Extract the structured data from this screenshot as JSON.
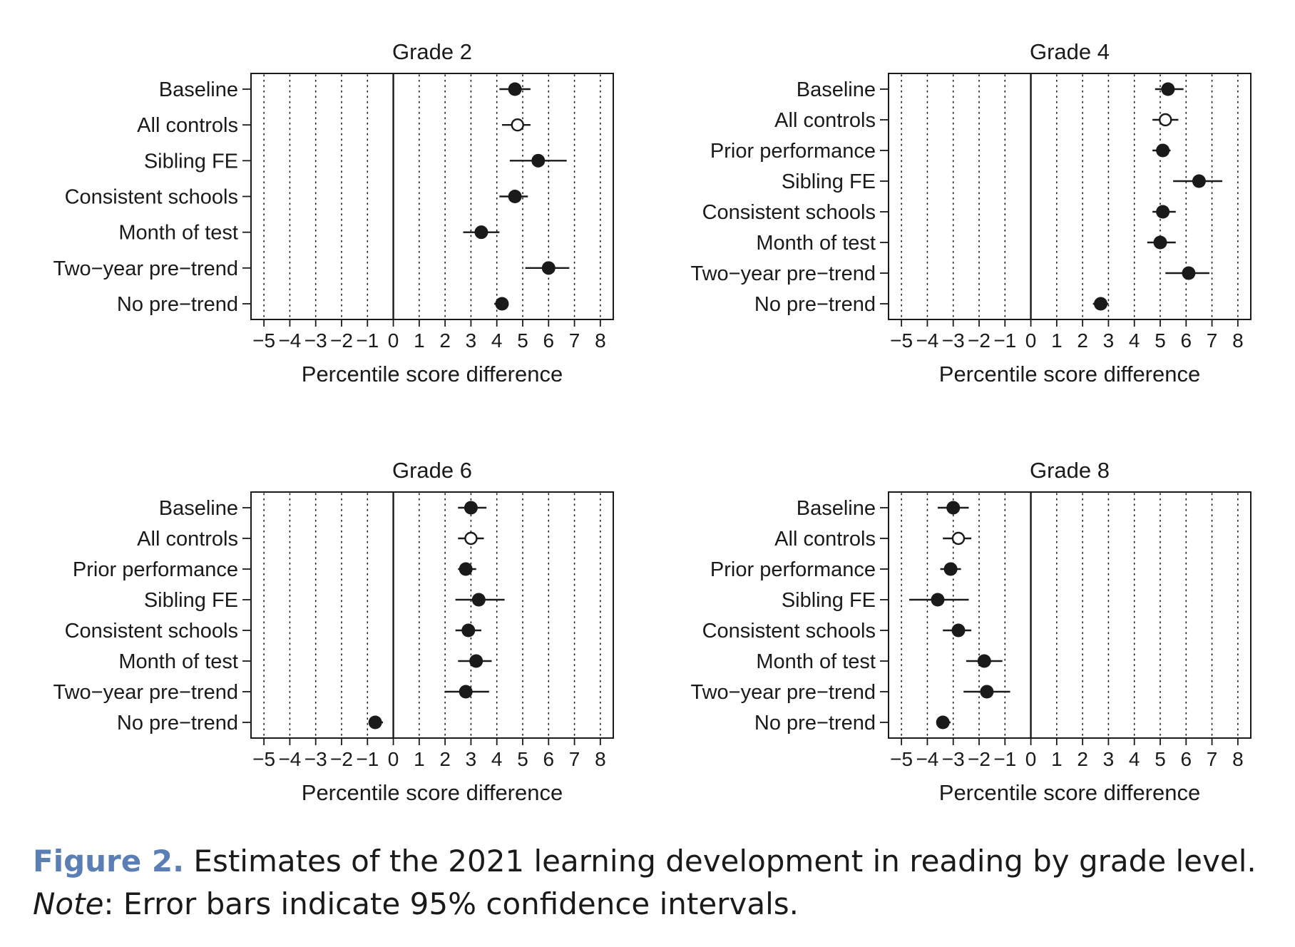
{
  "figure": {
    "label": "Figure 2.",
    "caption_main": " Estimates of the 2021 learning development in reading by grade level. ",
    "note_label": "Note",
    "note_text": ": Error bars indicate 95% confidence intervals."
  },
  "colors": {
    "ink": "#1a1a1a",
    "caption_accent": "#5b7fb5"
  },
  "chart_data": [
    {
      "type": "scatter",
      "title": "Grade 2",
      "xlabel": "Percentile score difference",
      "xlim": [
        -5.5,
        8.5
      ],
      "xticks": [
        -5,
        -4,
        -3,
        -2,
        -1,
        0,
        1,
        2,
        3,
        4,
        5,
        6,
        7,
        8
      ],
      "xtick_labels": [
        "−5",
        "−4",
        "−3",
        "−2",
        "−1",
        "0",
        "1",
        "2",
        "3",
        "4",
        "5",
        "6",
        "7",
        "8"
      ],
      "grid": "vertical dotted",
      "reference_line": 0,
      "estimates": [
        {
          "label": "Baseline",
          "value": 4.7,
          "ci": [
            4.1,
            5.3
          ],
          "marker": "filled"
        },
        {
          "label": "All controls",
          "value": 4.8,
          "ci": [
            4.2,
            5.3
          ],
          "marker": "hollow"
        },
        {
          "label": "Sibling FE",
          "value": 5.6,
          "ci": [
            4.5,
            6.7
          ],
          "marker": "filled"
        },
        {
          "label": "Consistent schools",
          "value": 4.7,
          "ci": [
            4.1,
            5.2
          ],
          "marker": "filled"
        },
        {
          "label": "Month of test",
          "value": 3.4,
          "ci": [
            2.7,
            4.1
          ],
          "marker": "filled"
        },
        {
          "label": "Two−year pre−trend",
          "value": 6.0,
          "ci": [
            5.1,
            6.8
          ],
          "marker": "filled"
        },
        {
          "label": "No pre−trend",
          "value": 4.2,
          "ci": [
            3.9,
            4.4
          ],
          "marker": "filled"
        }
      ]
    },
    {
      "type": "scatter",
      "title": "Grade 4",
      "xlabel": "Percentile score difference",
      "xlim": [
        -5.5,
        8.5
      ],
      "xticks": [
        -5,
        -4,
        -3,
        -2,
        -1,
        0,
        1,
        2,
        3,
        4,
        5,
        6,
        7,
        8
      ],
      "xtick_labels": [
        "−5",
        "−4",
        "−3",
        "−2",
        "−1",
        "0",
        "1",
        "2",
        "3",
        "4",
        "5",
        "6",
        "7",
        "8"
      ],
      "grid": "vertical dotted",
      "reference_line": 0,
      "estimates": [
        {
          "label": "Baseline",
          "value": 5.3,
          "ci": [
            4.8,
            5.9
          ],
          "marker": "filled"
        },
        {
          "label": "All controls",
          "value": 5.2,
          "ci": [
            4.7,
            5.7
          ],
          "marker": "hollow"
        },
        {
          "label": "Prior performance",
          "value": 5.1,
          "ci": [
            4.7,
            5.4
          ],
          "marker": "filled"
        },
        {
          "label": "Sibling FE",
          "value": 6.5,
          "ci": [
            5.5,
            7.4
          ],
          "marker": "filled"
        },
        {
          "label": "Consistent schools",
          "value": 5.1,
          "ci": [
            4.7,
            5.6
          ],
          "marker": "filled"
        },
        {
          "label": "Month of test",
          "value": 5.0,
          "ci": [
            4.5,
            5.6
          ],
          "marker": "filled"
        },
        {
          "label": "Two−year pre−trend",
          "value": 6.1,
          "ci": [
            5.2,
            6.9
          ],
          "marker": "filled"
        },
        {
          "label": "No pre−trend",
          "value": 2.7,
          "ci": [
            2.4,
            3.0
          ],
          "marker": "filled"
        }
      ]
    },
    {
      "type": "scatter",
      "title": "Grade 6",
      "xlabel": "Percentile score difference",
      "xlim": [
        -5.5,
        8.5
      ],
      "xticks": [
        -5,
        -4,
        -3,
        -2,
        -1,
        0,
        1,
        2,
        3,
        4,
        5,
        6,
        7,
        8
      ],
      "xtick_labels": [
        "−5",
        "−4",
        "−3",
        "−2",
        "−1",
        "0",
        "1",
        "2",
        "3",
        "4",
        "5",
        "6",
        "7",
        "8"
      ],
      "grid": "vertical dotted",
      "reference_line": 0,
      "estimates": [
        {
          "label": "Baseline",
          "value": 3.0,
          "ci": [
            2.5,
            3.6
          ],
          "marker": "filled"
        },
        {
          "label": "All controls",
          "value": 3.0,
          "ci": [
            2.5,
            3.5
          ],
          "marker": "hollow"
        },
        {
          "label": "Prior performance",
          "value": 2.8,
          "ci": [
            2.5,
            3.2
          ],
          "marker": "filled"
        },
        {
          "label": "Sibling FE",
          "value": 3.3,
          "ci": [
            2.4,
            4.3
          ],
          "marker": "filled"
        },
        {
          "label": "Consistent schools",
          "value": 2.9,
          "ci": [
            2.4,
            3.4
          ],
          "marker": "filled"
        },
        {
          "label": "Month of test",
          "value": 3.2,
          "ci": [
            2.5,
            3.8
          ],
          "marker": "filled"
        },
        {
          "label": "Two−year pre−trend",
          "value": 2.8,
          "ci": [
            2.0,
            3.7
          ],
          "marker": "filled"
        },
        {
          "label": "No pre−trend",
          "value": -0.7,
          "ci": [
            -0.9,
            -0.4
          ],
          "marker": "filled"
        }
      ]
    },
    {
      "type": "scatter",
      "title": "Grade 8",
      "xlabel": "Percentile score difference",
      "xlim": [
        -5.5,
        8.5
      ],
      "xticks": [
        -5,
        -4,
        -3,
        -2,
        -1,
        0,
        1,
        2,
        3,
        4,
        5,
        6,
        7,
        8
      ],
      "xtick_labels": [
        "−5",
        "−4",
        "−3",
        "−2",
        "−1",
        "0",
        "1",
        "2",
        "3",
        "4",
        "5",
        "6",
        "7",
        "8"
      ],
      "grid": "vertical dotted",
      "reference_line": 0,
      "estimates": [
        {
          "label": "Baseline",
          "value": -3.0,
          "ci": [
            -3.6,
            -2.4
          ],
          "marker": "filled"
        },
        {
          "label": "All controls",
          "value": -2.8,
          "ci": [
            -3.4,
            -2.3
          ],
          "marker": "hollow"
        },
        {
          "label": "Prior performance",
          "value": -3.1,
          "ci": [
            -3.5,
            -2.7
          ],
          "marker": "filled"
        },
        {
          "label": "Sibling FE",
          "value": -3.6,
          "ci": [
            -4.7,
            -2.4
          ],
          "marker": "filled"
        },
        {
          "label": "Consistent schools",
          "value": -2.8,
          "ci": [
            -3.4,
            -2.3
          ],
          "marker": "filled"
        },
        {
          "label": "Month of test",
          "value": -1.8,
          "ci": [
            -2.5,
            -1.1
          ],
          "marker": "filled"
        },
        {
          "label": "Two−year pre−trend",
          "value": -1.7,
          "ci": [
            -2.6,
            -0.8
          ],
          "marker": "filled"
        },
        {
          "label": "No pre−trend",
          "value": -3.4,
          "ci": [
            -3.6,
            -3.1
          ],
          "marker": "filled"
        }
      ]
    }
  ]
}
